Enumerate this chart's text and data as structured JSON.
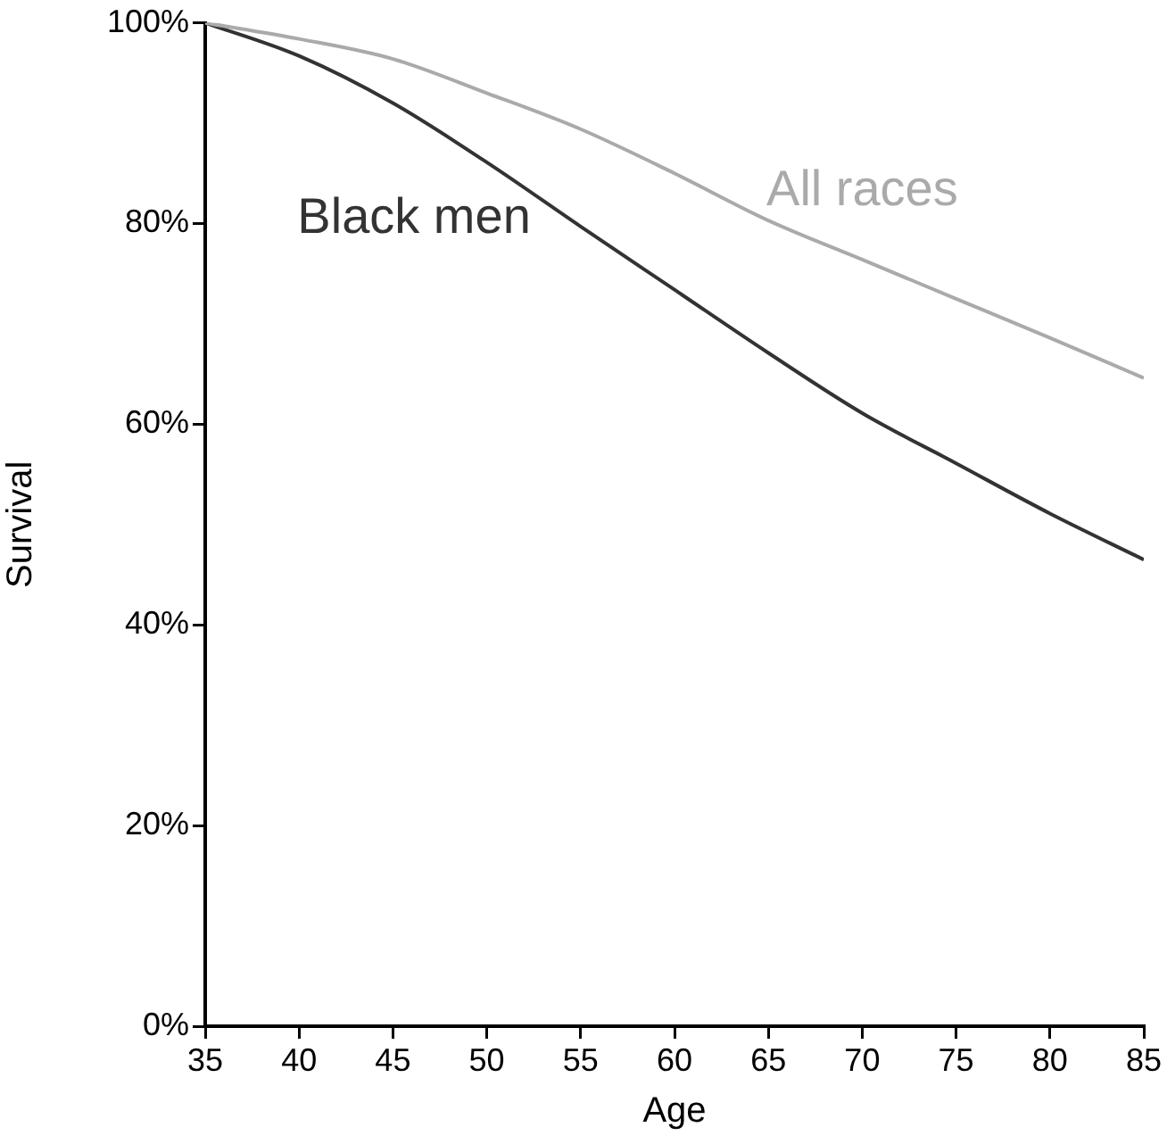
{
  "chart_data": {
    "type": "line",
    "xlabel": "Age",
    "ylabel": "Survival",
    "x": [
      35,
      40,
      45,
      50,
      55,
      60,
      65,
      70,
      75,
      80,
      85
    ],
    "series": [
      {
        "name": "All races",
        "color": "#aaaaaa",
        "values": [
          100,
          98.4,
          96.4,
          93.0,
          89.4,
          85.0,
          80.3,
          76.4,
          72.5,
          68.6,
          64.6
        ]
      },
      {
        "name": "Black men",
        "color": "#333333",
        "values": [
          100,
          96.7,
          92.0,
          86.1,
          79.7,
          73.4,
          67.1,
          61.1,
          56.1,
          51.1,
          46.5
        ]
      }
    ],
    "xlim": [
      35,
      85
    ],
    "xticks": [
      35,
      40,
      45,
      50,
      55,
      60,
      65,
      70,
      75,
      80,
      85
    ],
    "ylim": [
      0,
      100
    ],
    "yticks": [
      {
        "value": 0,
        "label": "0%"
      },
      {
        "value": 20,
        "label": "20%"
      },
      {
        "value": 40,
        "label": "40%"
      },
      {
        "value": 60,
        "label": "60%"
      },
      {
        "value": 80,
        "label": "80%"
      },
      {
        "value": 100,
        "label": "100%"
      }
    ],
    "grid": false,
    "legend": false,
    "marker": "none",
    "line_style": "solid"
  }
}
